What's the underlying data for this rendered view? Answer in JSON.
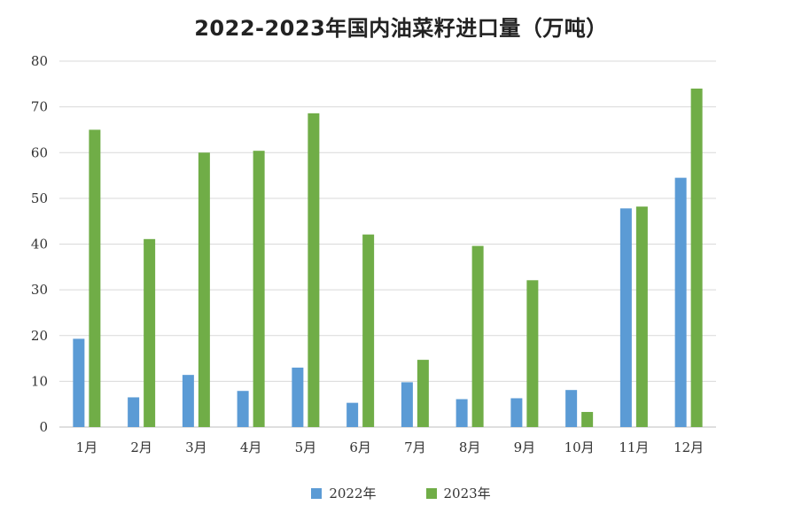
{
  "chart_data": {
    "type": "bar",
    "title": "2022-2023年国内油菜籽进口量（万吨）",
    "categories": [
      "1月",
      "2月",
      "3月",
      "4月",
      "5月",
      "6月",
      "7月",
      "8月",
      "9月",
      "10月",
      "11月",
      "12月"
    ],
    "series": [
      {
        "name": "2022年",
        "color": "#5b9bd5",
        "values": [
          19.3,
          6.5,
          11.4,
          7.9,
          13.0,
          5.3,
          9.8,
          6.1,
          6.3,
          8.1,
          47.8,
          54.5
        ]
      },
      {
        "name": "2023年",
        "color": "#70ad47",
        "values": [
          65.0,
          41.1,
          60.0,
          60.4,
          68.6,
          42.1,
          14.7,
          39.6,
          32.1,
          3.3,
          48.2,
          74.0
        ]
      }
    ],
    "ylim": [
      0,
      80
    ],
    "yticks": [
      0,
      10,
      20,
      30,
      40,
      50,
      60,
      70,
      80
    ],
    "grid": true,
    "legend_position": "bottom"
  }
}
